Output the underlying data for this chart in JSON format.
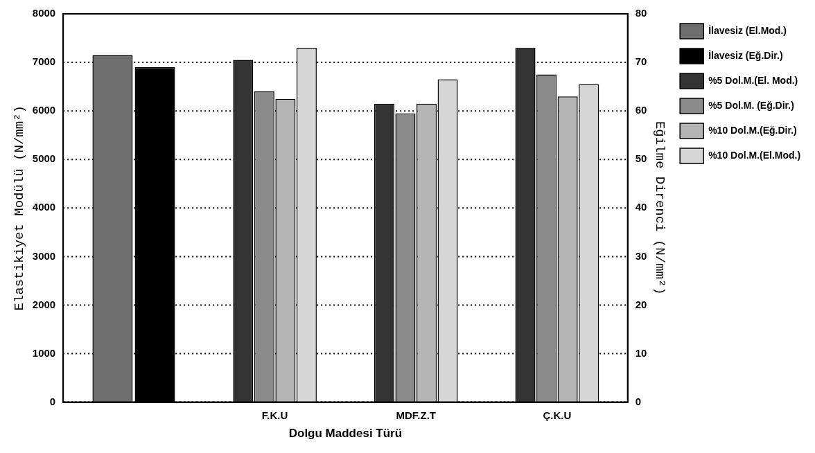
{
  "chart_data": {
    "type": "bar",
    "xlabel": "Dolgu Maddesi Türü",
    "ylabel": "Elastikiyet Modülü (N/mm²)",
    "y2label": "Eğilme Direnci (N/mm²)",
    "categories": [
      null,
      "F.K.U",
      "MDF.Z.T",
      "Ç.K.U"
    ],
    "series": [
      {
        "name": "İlavesiz (El.Mod.)",
        "color": "#6e6e6e",
        "values": [
          7150,
          null,
          null,
          null
        ]
      },
      {
        "name": "İlavesiz (Eğ.Dir.)",
        "color": "#000000",
        "values": [
          69,
          null,
          null,
          null
        ],
        "axis": "y2"
      },
      {
        "name": "%5 Dol.M.(El. Mod.)",
        "color": "#333333",
        "values": [
          null,
          7050,
          6150,
          7300
        ]
      },
      {
        "name": "%5 Dol.M. (Eğ.Dir.)",
        "color": "#8a8a8a",
        "values": [
          null,
          64,
          59.5,
          67.5
        ],
        "axis": "y2"
      },
      {
        "name": "%10 Dol.M.(Eğ.Dir.)",
        "color": "#b4b4b4",
        "values": [
          null,
          62.5,
          61.5,
          63
        ],
        "axis": "y2"
      },
      {
        "name": "%10 Dol.M.(El.Mod.)",
        "color": "#d6d6d6",
        "values": [
          null,
          7300,
          6650,
          6550
        ]
      }
    ],
    "ylim": [
      0,
      8000
    ],
    "yticks": [
      0,
      1000,
      2000,
      3000,
      4000,
      5000,
      6000,
      7000,
      8000
    ],
    "y2lim": [
      0,
      80
    ],
    "y2ticks": [
      0,
      10,
      20,
      30,
      40,
      50,
      60,
      70,
      80
    ],
    "grid": "y",
    "legend": "right"
  }
}
